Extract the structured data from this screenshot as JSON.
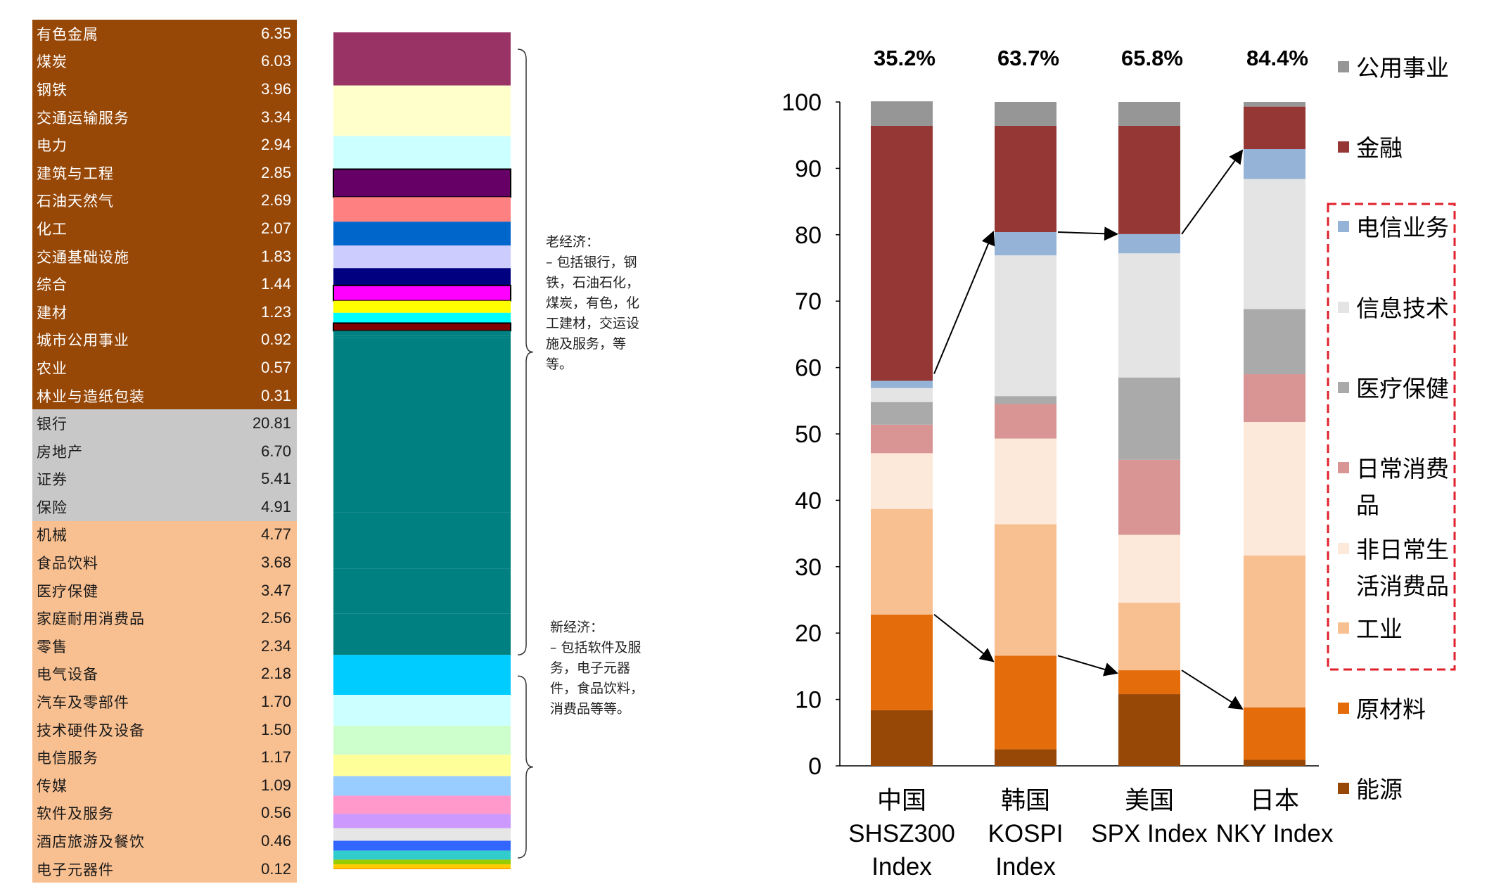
{
  "table": {
    "rows": [
      {
        "name": "有色金属",
        "value": "6.35",
        "group": "old"
      },
      {
        "name": "煤炭",
        "value": "6.03",
        "group": "old"
      },
      {
        "name": "钢铁",
        "value": "3.96",
        "group": "old"
      },
      {
        "name": "交通运输服务",
        "value": "3.34",
        "group": "old"
      },
      {
        "name": "电力",
        "value": "2.94",
        "group": "old"
      },
      {
        "name": "建筑与工程",
        "value": "2.85",
        "group": "old"
      },
      {
        "name": "石油天然气",
        "value": "2.69",
        "group": "old"
      },
      {
        "name": "化工",
        "value": "2.07",
        "group": "old"
      },
      {
        "name": "交通基础设施",
        "value": "1.83",
        "group": "old"
      },
      {
        "name": "综合",
        "value": "1.44",
        "group": "old"
      },
      {
        "name": "建材",
        "value": "1.23",
        "group": "old"
      },
      {
        "name": "城市公用事业",
        "value": "0.92",
        "group": "old"
      },
      {
        "name": "农业",
        "value": "0.57",
        "group": "old"
      },
      {
        "name": "林业与造纸包装",
        "value": "0.31",
        "group": "old"
      },
      {
        "name": "银行",
        "value": "20.81",
        "group": "fin"
      },
      {
        "name": "房地产",
        "value": "6.70",
        "group": "fin"
      },
      {
        "name": "证券",
        "value": "5.41",
        "group": "fin"
      },
      {
        "name": "保险",
        "value": "4.91",
        "group": "fin"
      },
      {
        "name": "机械",
        "value": "4.77",
        "group": "new"
      },
      {
        "name": "食品饮料",
        "value": "3.68",
        "group": "new"
      },
      {
        "name": "医疗保健",
        "value": "3.47",
        "group": "new"
      },
      {
        "name": "家庭耐用消费品",
        "value": "2.56",
        "group": "new"
      },
      {
        "name": "零售",
        "value": "2.34",
        "group": "new"
      },
      {
        "name": "电气设备",
        "value": "2.18",
        "group": "new"
      },
      {
        "name": "汽车及零部件",
        "value": "1.70",
        "group": "new"
      },
      {
        "name": "技术硬件及设备",
        "value": "1.50",
        "group": "new"
      },
      {
        "name": "电信服务",
        "value": "1.17",
        "group": "new"
      },
      {
        "name": "传媒",
        "value": "1.09",
        "group": "new"
      },
      {
        "name": "软件及服务",
        "value": "0.56",
        "group": "new"
      },
      {
        "name": "酒店旅游及餐饮",
        "value": "0.46",
        "group": "new"
      },
      {
        "name": "电子元器件",
        "value": "0.12",
        "group": "new"
      }
    ],
    "group_colors": {
      "old": "#974706",
      "fin": "#c8c8c8",
      "new": "#f8bf90"
    }
  },
  "notes": {
    "old_economy": "老经济：\n– 包括银行，钢铁，石油石化，煤炭，有色，化工建材，交运设施及服务，等等。",
    "new_economy": "新经济：\n– 包括软件及服务，电子元器件，食品饮料，消费品等等。"
  },
  "chart_data": [
    {
      "type": "bar",
      "stacked": true,
      "orientation": "vertical",
      "categories": [
        "有色金属",
        "煤炭",
        "钢铁",
        "交通运输服务",
        "电力",
        "建筑与工程",
        "石油天然气",
        "化工",
        "交通基础设施",
        "综合",
        "建材",
        "城市公用事业",
        "农业",
        "林业与造纸包装",
        "银行",
        "房地产",
        "证券",
        "保险",
        "机械",
        "食品饮料",
        "医疗保健",
        "家庭耐用消费品",
        "零售",
        "电气设备",
        "汽车及零部件",
        "技术硬件及设备",
        "电信服务",
        "传媒",
        "软件及服务",
        "酒店旅游及餐饮",
        "电子元器件"
      ],
      "values": [
        6.35,
        6.03,
        3.96,
        3.34,
        2.94,
        2.85,
        2.69,
        2.07,
        1.83,
        1.44,
        1.23,
        0.92,
        0.57,
        0.31,
        20.81,
        6.7,
        5.41,
        4.91,
        4.77,
        3.68,
        3.47,
        2.56,
        2.34,
        2.18,
        1.7,
        1.5,
        1.17,
        1.09,
        0.56,
        0.46,
        0.12
      ],
      "colors": [
        "#993366",
        "#ffffcc",
        "#ccffff",
        "#660066",
        "#ff8080",
        "#0066cc",
        "#ccccff",
        "#000080",
        "#ff00ff",
        "#ffff00",
        "#00ffff",
        "#800000",
        "#008080",
        "#008080",
        "#008080",
        "#008080",
        "#008080",
        "#008080",
        "#00ccff",
        "#ccffff",
        "#ccffcc",
        "#ffff99",
        "#99ccff",
        "#ff99cc",
        "#cc99ff",
        "#e6e6e6",
        "#3366ff",
        "#33cccc",
        "#99cc00",
        "#ffcc00",
        "#ff9900"
      ],
      "outlined_categories": [
        "交通运输服务",
        "交通基础设施",
        "城市公用事业"
      ]
    },
    {
      "type": "bar",
      "stacked": true,
      "categories": [
        "中国\nSHSZ300\nIndex",
        "韩国\nKOSPI\nIndex",
        "美国\nSPX Index",
        "日本\nNKY Index"
      ],
      "top_labels": [
        "35.2%",
        "63.7%",
        "65.8%",
        "84.4%"
      ],
      "ylim": [
        0,
        100
      ],
      "yticks": [
        0,
        10,
        20,
        30,
        40,
        50,
        60,
        70,
        80,
        90,
        100
      ],
      "series": [
        {
          "name": "能源",
          "color": "#974706",
          "values": [
            8.4,
            2.5,
            10.8,
            0.9
          ]
        },
        {
          "name": "原材料",
          "color": "#e46c0a",
          "values": [
            14.4,
            14.1,
            3.6,
            7.9
          ]
        },
        {
          "name": "工业",
          "color": "#f8bf90",
          "values": [
            15.9,
            19.8,
            10.2,
            22.9
          ]
        },
        {
          "name": "非日常生活消费品",
          "color": "#fce9da",
          "values": [
            8.4,
            12.9,
            10.2,
            20.1
          ]
        },
        {
          "name": "日常消费品",
          "color": "#d99594",
          "values": [
            4.3,
            5.2,
            11.3,
            7.2
          ]
        },
        {
          "name": "医疗保健",
          "color": "#aaaaaa",
          "values": [
            3.4,
            1.2,
            12.4,
            9.8
          ]
        },
        {
          "name": "信息技术",
          "color": "#e4e4e4",
          "values": [
            2.1,
            21.2,
            18.7,
            19.6
          ]
        },
        {
          "name": "电信业务",
          "color": "#95b3d7",
          "values": [
            1.1,
            3.5,
            2.9,
            4.5
          ]
        },
        {
          "name": "金融",
          "color": "#953735",
          "values": [
            38.4,
            16.0,
            16.3,
            6.4
          ]
        },
        {
          "name": "公用事业",
          "color": "#969696",
          "values": [
            3.7,
            3.6,
            3.6,
            0.7
          ]
        }
      ],
      "legend": {
        "position": "right",
        "order": [
          "公用事业",
          "金融",
          "电信业务",
          "信息技术",
          "医疗保健",
          "日常消费品",
          "非日常生活消费品",
          "工业",
          "原材料",
          "能源"
        ],
        "highlighted": [
          "电信业务",
          "信息技术",
          "医疗保健",
          "日常消费品",
          "非日常生活消费品",
          "工业"
        ]
      },
      "legend_display": {
        "日常消费品": [
          "日常消费",
          "品"
        ],
        "非日常生活消费品": [
          "非日常生",
          "活消费品"
        ]
      },
      "grid": false
    }
  ]
}
